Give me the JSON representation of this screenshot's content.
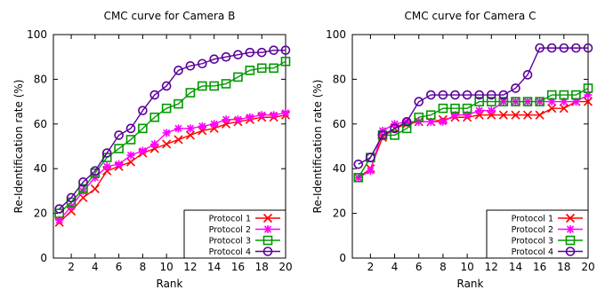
{
  "colors": {
    "protocol1": "#ff0000",
    "protocol2": "#ff00ff",
    "protocol3": "#009900",
    "protocol4": "#5a0099"
  },
  "chart_data": [
    {
      "type": "line",
      "title": "CMC curve for Camera B",
      "xlabel": "Rank",
      "ylabel": "Re-Identification rate (%)",
      "xlim": [
        0.5,
        20
      ],
      "ylim": [
        0,
        100
      ],
      "xticks": [
        2,
        4,
        6,
        8,
        10,
        12,
        14,
        16,
        18,
        20
      ],
      "yticks": [
        0,
        20,
        40,
        60,
        80,
        100
      ],
      "grid": false,
      "legend_position": "bottom-right",
      "x": [
        1,
        2,
        3,
        4,
        5,
        6,
        7,
        8,
        9,
        10,
        11,
        12,
        13,
        14,
        15,
        16,
        17,
        18,
        19,
        20
      ],
      "series": [
        {
          "name": "Protocol 1",
          "marker": "x",
          "color": "#ff0000",
          "values": [
            16,
            21,
            27,
            31,
            39,
            41,
            43,
            47,
            49,
            51,
            53,
            55,
            57,
            58,
            60,
            61,
            62,
            63,
            63,
            64
          ]
        },
        {
          "name": "Protocol 2",
          "marker": "star",
          "color": "#ff00ff",
          "values": [
            17,
            23,
            30,
            36,
            41,
            42,
            46,
            48,
            51,
            56,
            58,
            58,
            59,
            60,
            62,
            62,
            63,
            64,
            64,
            65
          ]
        },
        {
          "name": "Protocol 3",
          "marker": "square",
          "color": "#009900",
          "values": [
            20,
            25,
            31,
            38,
            45,
            49,
            53,
            58,
            63,
            67,
            69,
            74,
            77,
            77,
            78,
            81,
            84,
            85,
            85,
            88
          ]
        },
        {
          "name": "Protocol 4",
          "marker": "circle",
          "color": "#5a0099",
          "values": [
            22,
            27,
            34,
            39,
            47,
            55,
            58,
            66,
            73,
            77,
            84,
            86,
            87,
            89,
            90,
            91,
            92,
            92,
            93,
            93
          ]
        }
      ]
    },
    {
      "type": "line",
      "title": "CMC curve for Camera C",
      "xlabel": "Rank",
      "ylabel": "Re-Identification rate (%)",
      "xlim": [
        0.5,
        20
      ],
      "ylim": [
        0,
        100
      ],
      "xticks": [
        2,
        4,
        6,
        8,
        10,
        12,
        14,
        16,
        18,
        20
      ],
      "yticks": [
        0,
        20,
        40,
        60,
        80,
        100
      ],
      "grid": false,
      "legend_position": "bottom-right",
      "x": [
        1,
        2,
        3,
        4,
        5,
        6,
        7,
        8,
        9,
        10,
        11,
        12,
        13,
        14,
        15,
        16,
        17,
        18,
        19,
        20
      ],
      "series": [
        {
          "name": "Protocol 1",
          "marker": "x",
          "color": "#ff0000",
          "values": [
            36,
            40,
            54,
            58,
            60,
            61,
            61,
            62,
            63,
            63,
            64,
            64,
            64,
            64,
            64,
            64,
            67,
            67,
            70,
            70
          ]
        },
        {
          "name": "Protocol 2",
          "marker": "star",
          "color": "#ff00ff",
          "values": [
            36,
            39,
            57,
            60,
            61,
            61,
            61,
            61,
            64,
            64,
            66,
            66,
            70,
            70,
            70,
            70,
            70,
            70,
            70,
            73
          ]
        },
        {
          "name": "Protocol 3",
          "marker": "square",
          "color": "#009900",
          "values": [
            36,
            45,
            55,
            55,
            58,
            63,
            64,
            67,
            67,
            67,
            70,
            70,
            70,
            70,
            70,
            70,
            73,
            73,
            73,
            76
          ]
        },
        {
          "name": "Protocol 4",
          "marker": "circle",
          "color": "#5a0099",
          "values": [
            42,
            45,
            55,
            58,
            61,
            70,
            73,
            73,
            73,
            73,
            73,
            73,
            73,
            76,
            82,
            94,
            94,
            94,
            94,
            94
          ]
        }
      ]
    }
  ]
}
